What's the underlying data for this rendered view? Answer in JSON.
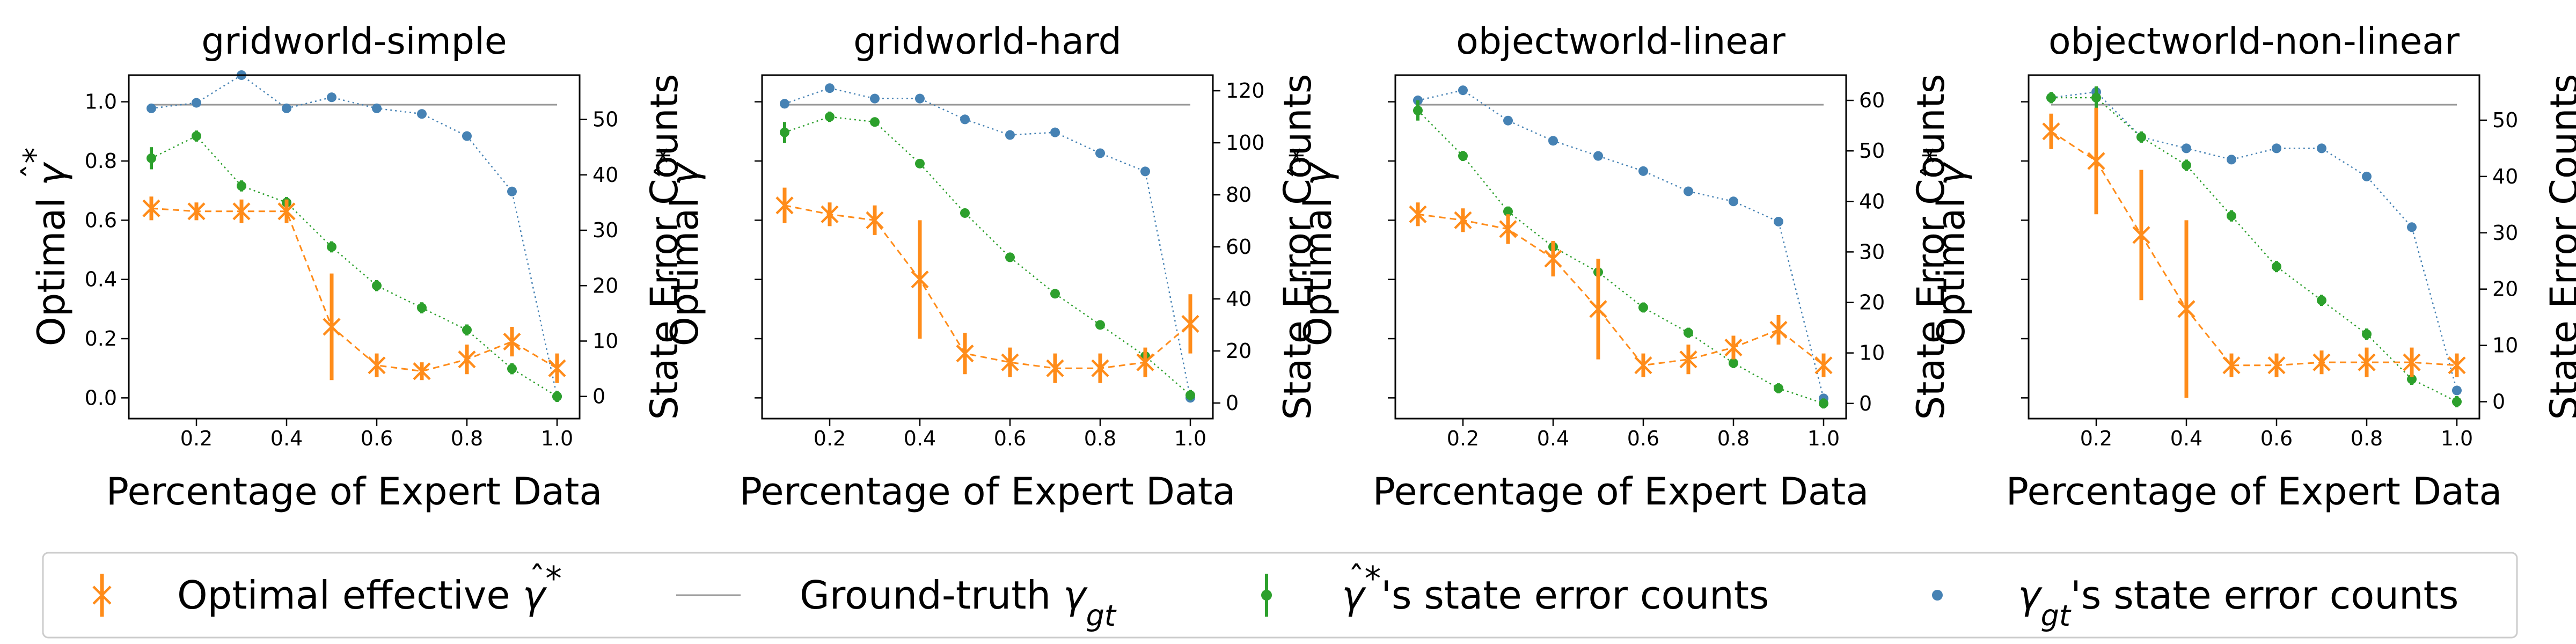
{
  "figure": {
    "legend": {
      "placement": "bottom",
      "entries": [
        {
          "label": "Optimal effective γ̂*",
          "marker": "x-errorbar",
          "color": "#ff8c1a"
        },
        {
          "label": "Ground-truth γgt",
          "marker": "line",
          "color": "#999999"
        },
        {
          "label": "γ̂*'s state error counts",
          "marker": "dot-errorbar",
          "color": "#2ca02c"
        },
        {
          "label": "γgt's state error counts",
          "marker": "dot",
          "color": "#4682b4"
        }
      ]
    }
  },
  "chart_data": [
    {
      "type": "line",
      "title": "gridworld-simple",
      "xlabel": "Percentage of Expert Data",
      "ylabel_left": "Optimal γ̂*",
      "ylabel_right": "State Error Counts",
      "x": [
        0.1,
        0.2,
        0.3,
        0.4,
        0.5,
        0.6,
        0.7,
        0.8,
        0.9,
        1.0
      ],
      "x_ticks": [
        0.2,
        0.4,
        0.6,
        0.8,
        1.0
      ],
      "xlim": [
        0.05,
        1.05
      ],
      "ylim_left": [
        -0.07,
        1.09
      ],
      "ylim_right": [
        -4,
        58
      ],
      "left_ticks": [
        0.0,
        0.2,
        0.4,
        0.6,
        0.8,
        1.0
      ],
      "right_ticks": [
        0,
        10,
        20,
        30,
        40,
        50
      ],
      "ground_truth_gamma": 0.99,
      "series": [
        {
          "name": "Optimal effective γ̂*",
          "axis": "left",
          "values": [
            0.64,
            0.63,
            0.63,
            0.63,
            0.24,
            0.11,
            0.09,
            0.13,
            0.19,
            0.1
          ],
          "errors": [
            0.04,
            0.03,
            0.04,
            0.04,
            0.18,
            0.04,
            0.03,
            0.05,
            0.05,
            0.05
          ]
        },
        {
          "name": "γ̂*'s state error counts",
          "axis": "right",
          "values": [
            43,
            47,
            38,
            35,
            27,
            20,
            16,
            12,
            5,
            0
          ],
          "errors": [
            2,
            1,
            1,
            1,
            1,
            1,
            1,
            1,
            1,
            1
          ]
        },
        {
          "name": "γgt's state error counts",
          "axis": "right",
          "values": [
            52,
            53,
            58,
            52,
            54,
            52,
            51,
            47,
            37,
            0
          ]
        }
      ]
    },
    {
      "type": "line",
      "title": "gridworld-hard",
      "xlabel": "Percentage of Expert Data",
      "ylabel_left": "Optimal γ̂*",
      "ylabel_right": "State Error Counts",
      "x": [
        0.1,
        0.2,
        0.3,
        0.4,
        0.5,
        0.6,
        0.7,
        0.8,
        0.9,
        1.0
      ],
      "x_ticks": [
        0.2,
        0.4,
        0.6,
        0.8,
        1.0
      ],
      "xlim": [
        0.05,
        1.05
      ],
      "ylim_left": [
        -0.07,
        1.09
      ],
      "ylim_right": [
        -6,
        126
      ],
      "left_ticks": [],
      "right_ticks": [
        0,
        20,
        40,
        60,
        80,
        100,
        120
      ],
      "ground_truth_gamma": 0.99,
      "series": [
        {
          "name": "Optimal effective γ̂*",
          "axis": "left",
          "values": [
            0.65,
            0.62,
            0.6,
            0.4,
            0.15,
            0.12,
            0.1,
            0.1,
            0.12,
            0.25
          ],
          "errors": [
            0.06,
            0.04,
            0.05,
            0.2,
            0.07,
            0.05,
            0.05,
            0.05,
            0.05,
            0.1
          ]
        },
        {
          "name": "γ̂*'s state error counts",
          "axis": "right",
          "values": [
            104,
            110,
            108,
            92,
            73,
            56,
            42,
            30,
            18,
            3
          ],
          "errors": [
            4,
            2,
            1,
            1,
            1,
            1,
            1,
            1,
            1,
            2
          ]
        },
        {
          "name": "γgt's state error counts",
          "axis": "right",
          "values": [
            115,
            121,
            117,
            117,
            109,
            103,
            104,
            96,
            89,
            2
          ]
        }
      ]
    },
    {
      "type": "line",
      "title": "objectworld-linear",
      "xlabel": "Percentage of Expert Data",
      "ylabel_left": "Optimal γ̂*",
      "ylabel_right": "State Error Counts",
      "x": [
        0.1,
        0.2,
        0.3,
        0.4,
        0.5,
        0.6,
        0.7,
        0.8,
        0.9,
        1.0
      ],
      "x_ticks": [
        0.2,
        0.4,
        0.6,
        0.8,
        1.0
      ],
      "xlim": [
        0.05,
        1.05
      ],
      "ylim_left": [
        -0.07,
        1.09
      ],
      "ylim_right": [
        -3,
        65
      ],
      "left_ticks": [],
      "right_ticks": [
        0,
        10,
        20,
        30,
        40,
        50,
        60
      ],
      "ground_truth_gamma": 0.99,
      "series": [
        {
          "name": "Optimal effective γ̂*",
          "axis": "left",
          "values": [
            0.62,
            0.6,
            0.57,
            0.47,
            0.3,
            0.11,
            0.13,
            0.17,
            0.23,
            0.11
          ],
          "errors": [
            0.04,
            0.04,
            0.05,
            0.06,
            0.17,
            0.04,
            0.05,
            0.04,
            0.05,
            0.04
          ]
        },
        {
          "name": "γ̂*'s state error counts",
          "axis": "right",
          "values": [
            58,
            49,
            38,
            31,
            26,
            19,
            14,
            8,
            3,
            0
          ],
          "errors": [
            2,
            1,
            1,
            1,
            1,
            1,
            1,
            1,
            1,
            1
          ]
        },
        {
          "name": "γgt's state error counts",
          "axis": "right",
          "values": [
            60,
            62,
            56,
            52,
            49,
            46,
            42,
            40,
            36,
            1
          ]
        }
      ]
    },
    {
      "type": "line",
      "title": "objectworld-non-linear",
      "xlabel": "Percentage of Expert Data",
      "ylabel_left": "Optimal γ̂*",
      "ylabel_right": "State Error Counts",
      "x": [
        0.1,
        0.2,
        0.3,
        0.4,
        0.5,
        0.6,
        0.7,
        0.8,
        0.9,
        1.0
      ],
      "x_ticks": [
        0.2,
        0.4,
        0.6,
        0.8,
        1.0
      ],
      "xlim": [
        0.05,
        1.05
      ],
      "ylim_left": [
        -0.07,
        1.09
      ],
      "ylim_right": [
        -3,
        58
      ],
      "left_ticks": [],
      "right_ticks": [
        0,
        10,
        20,
        30,
        40,
        50
      ],
      "ground_truth_gamma": 0.99,
      "series": [
        {
          "name": "Optimal effective γ̂*",
          "axis": "left",
          "values": [
            0.9,
            0.8,
            0.55,
            0.3,
            0.11,
            0.11,
            0.12,
            0.12,
            0.12,
            0.11
          ],
          "errors": [
            0.06,
            0.18,
            0.22,
            0.3,
            0.04,
            0.04,
            0.04,
            0.05,
            0.05,
            0.04
          ]
        },
        {
          "name": "γ̂*'s state error counts",
          "axis": "right",
          "values": [
            54,
            54,
            47,
            42,
            33,
            24,
            18,
            12,
            4,
            0
          ],
          "errors": [
            1,
            2,
            1,
            1,
            1,
            1,
            1,
            1,
            1,
            1
          ]
        },
        {
          "name": "γgt's state error counts",
          "axis": "right",
          "values": [
            54,
            55,
            47,
            45,
            43,
            45,
            45,
            40,
            31,
            2
          ]
        }
      ]
    }
  ]
}
